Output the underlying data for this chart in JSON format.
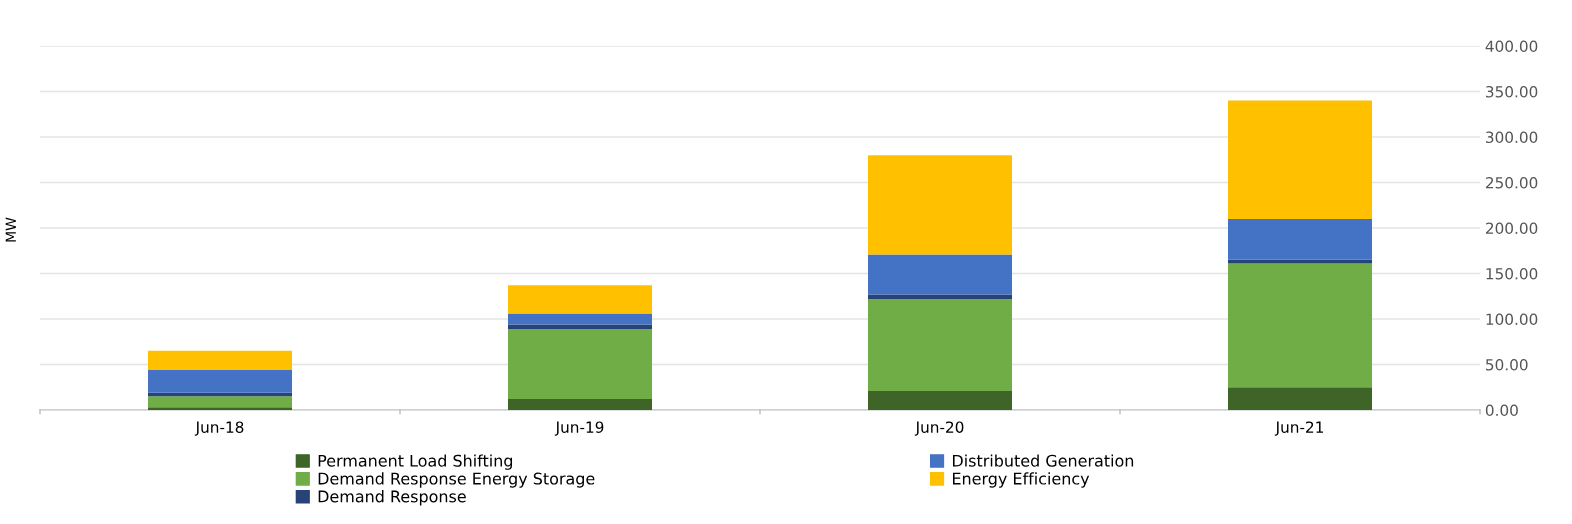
{
  "chart_data": {
    "type": "bar",
    "stacked": true,
    "ylabel": "MW",
    "categories": [
      "Jun-18",
      "Jun-19",
      "Jun-20",
      "Jun-21"
    ],
    "series": [
      {
        "name": "Permanent Load Shifting",
        "color": "#3f6428",
        "values": [
          3,
          12,
          21,
          25
        ]
      },
      {
        "name": "Demand Response Energy Storage",
        "color": "#70ad47",
        "values": [
          12,
          77,
          101,
          136
        ]
      },
      {
        "name": "Demand Response",
        "color": "#264478",
        "values": [
          4,
          5,
          5,
          4
        ]
      },
      {
        "name": "Distributed Generation",
        "color": "#4472c4",
        "values": [
          25,
          12,
          44,
          45
        ]
      },
      {
        "name": "Energy Efficiency",
        "color": "#ffc000",
        "values": [
          21,
          31,
          109,
          130
        ]
      }
    ],
    "ylim": [
      0,
      400
    ],
    "yticks": [
      {
        "value": 0,
        "label": "0.00"
      },
      {
        "value": 50,
        "label": "50.00"
      },
      {
        "value": 100,
        "label": "100.00"
      },
      {
        "value": 150,
        "label": "150.00"
      },
      {
        "value": 200,
        "label": "200.00"
      },
      {
        "value": 250,
        "label": "250.00"
      },
      {
        "value": 300,
        "label": "300.00"
      },
      {
        "value": 350,
        "label": "350.00"
      },
      {
        "value": 400,
        "label": "400.00"
      }
    ],
    "grid": "y",
    "legend": "bottom"
  }
}
